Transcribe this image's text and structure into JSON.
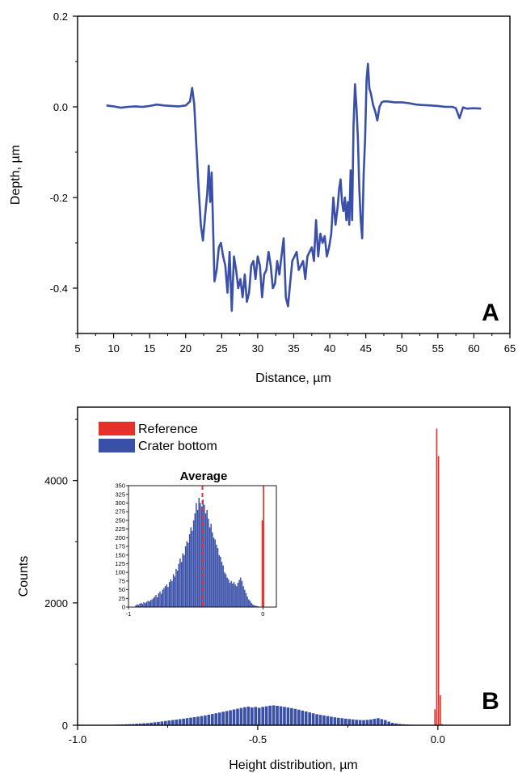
{
  "colors": {
    "line": "#3a4fa8",
    "crater": "#3a4fa8",
    "reference": "#e8302a",
    "average_marker": "#e8302a",
    "axis": "#000000"
  },
  "chart_data": [
    {
      "type": "line",
      "panel_label": "A",
      "xlabel": "Distance, µm",
      "ylabel": "Depth, µm",
      "xlim": [
        5,
        65
      ],
      "ylim": [
        -0.5,
        0.2
      ],
      "x_ticks": [
        5,
        10,
        15,
        20,
        25,
        30,
        35,
        40,
        45,
        50,
        55,
        60,
        65
      ],
      "y_ticks": [
        0.2,
        0.0,
        -0.2,
        -0.4
      ],
      "y_tick_labels": [
        "0.2",
        "0.0",
        "-0.2",
        "-0.4"
      ],
      "grid": false,
      "series": [
        {
          "x": [
            9,
            10,
            11,
            12,
            13,
            14,
            15,
            16,
            17,
            18,
            19,
            20,
            20.6,
            20.9,
            21.2,
            21.5,
            21.8,
            22.1,
            22.4,
            22.7,
            23.0,
            23.2,
            23.4,
            23.6,
            23.8,
            24.0,
            24.3,
            24.6,
            24.9,
            25.2,
            25.5,
            25.8,
            26.1,
            26.4,
            26.7,
            27.0,
            27.3,
            27.6,
            27.9,
            28.2,
            28.5,
            28.8,
            29.1,
            29.4,
            29.7,
            30.0,
            30.3,
            30.6,
            30.9,
            31.2,
            31.5,
            31.8,
            32.1,
            32.4,
            32.7,
            33.0,
            33.3,
            33.6,
            33.9,
            34.2,
            34.5,
            34.8,
            35.1,
            35.4,
            35.7,
            36.0,
            36.3,
            36.6,
            36.9,
            37.2,
            37.5,
            37.8,
            38.1,
            38.4,
            38.7,
            39.0,
            39.3,
            39.6,
            39.9,
            40.2,
            40.5,
            40.8,
            41.1,
            41.3,
            41.5,
            41.7,
            41.9,
            42.1,
            42.3,
            42.5,
            42.7,
            42.9,
            43.1,
            43.3,
            43.5,
            43.7,
            43.9,
            44.1,
            44.3,
            44.5,
            44.7,
            44.9,
            45.1,
            45.3,
            45.5,
            45.7,
            46.0,
            46.3,
            46.6,
            46.9,
            47.2,
            47.5,
            48,
            49,
            50,
            51,
            52,
            53,
            54,
            55,
            56,
            57,
            57.5,
            58,
            58.5,
            59,
            60,
            61
          ],
          "y": [
            0.003,
            0.001,
            -0.002,
            0.0,
            0.001,
            0.0,
            0.002,
            0.005,
            0.003,
            0.002,
            0.001,
            0.003,
            0.012,
            0.042,
            0.005,
            -0.09,
            -0.18,
            -0.26,
            -0.295,
            -0.24,
            -0.19,
            -0.13,
            -0.21,
            -0.145,
            -0.26,
            -0.385,
            -0.36,
            -0.31,
            -0.3,
            -0.33,
            -0.35,
            -0.41,
            -0.32,
            -0.45,
            -0.33,
            -0.36,
            -0.4,
            -0.38,
            -0.42,
            -0.37,
            -0.43,
            -0.41,
            -0.35,
            -0.34,
            -0.38,
            -0.33,
            -0.35,
            -0.42,
            -0.37,
            -0.36,
            -0.32,
            -0.35,
            -0.4,
            -0.39,
            -0.34,
            -0.37,
            -0.33,
            -0.29,
            -0.42,
            -0.44,
            -0.39,
            -0.34,
            -0.33,
            -0.32,
            -0.36,
            -0.35,
            -0.34,
            -0.38,
            -0.33,
            -0.32,
            -0.31,
            -0.34,
            -0.25,
            -0.33,
            -0.28,
            -0.3,
            -0.285,
            -0.33,
            -0.31,
            -0.28,
            -0.2,
            -0.26,
            -0.22,
            -0.18,
            -0.16,
            -0.21,
            -0.23,
            -0.2,
            -0.25,
            -0.21,
            -0.26,
            -0.14,
            -0.25,
            -0.04,
            0.05,
            0.0,
            -0.07,
            -0.18,
            -0.25,
            -0.29,
            -0.15,
            -0.07,
            0.06,
            0.095,
            0.04,
            0.03,
            0.005,
            -0.01,
            -0.03,
            0.0,
            0.01,
            0.012,
            0.012,
            0.01,
            0.01,
            0.008,
            0.005,
            0.004,
            0.003,
            0.002,
            0.0,
            0.0,
            -0.003,
            -0.025,
            -0.001,
            -0.004,
            -0.003,
            -0.004
          ]
        }
      ]
    },
    {
      "type": "bar",
      "panel_label": "B",
      "xlabel": "Height distribution, µm",
      "ylabel": "Counts",
      "xlim": [
        -1.0,
        0.2
      ],
      "ylim": [
        0,
        5200
      ],
      "x_ticks": [
        -1.0,
        -0.5,
        0.0
      ],
      "x_tick_labels": [
        "-1.0",
        "-0.5",
        "0.0"
      ],
      "y_ticks": [
        0,
        2000,
        4000
      ],
      "y_tick_labels": [
        "0",
        "2000",
        "4000"
      ],
      "bin_width": 0.01,
      "legend": {
        "position": "top-left",
        "entries": [
          "Reference",
          "Crater bottom"
        ]
      },
      "series": [
        {
          "name": "Crater bottom",
          "x": [
            -0.92,
            -0.91,
            -0.9,
            -0.89,
            -0.88,
            -0.87,
            -0.86,
            -0.85,
            -0.84,
            -0.83,
            -0.82,
            -0.81,
            -0.8,
            -0.79,
            -0.78,
            -0.77,
            -0.76,
            -0.75,
            -0.74,
            -0.73,
            -0.72,
            -0.71,
            -0.7,
            -0.69,
            -0.68,
            -0.67,
            -0.66,
            -0.65,
            -0.64,
            -0.63,
            -0.62,
            -0.61,
            -0.6,
            -0.59,
            -0.58,
            -0.57,
            -0.56,
            -0.55,
            -0.54,
            -0.53,
            -0.52,
            -0.51,
            -0.5,
            -0.49,
            -0.48,
            -0.47,
            -0.46,
            -0.45,
            -0.44,
            -0.43,
            -0.42,
            -0.41,
            -0.4,
            -0.39,
            -0.38,
            -0.37,
            -0.36,
            -0.35,
            -0.34,
            -0.33,
            -0.32,
            -0.31,
            -0.3,
            -0.29,
            -0.28,
            -0.27,
            -0.26,
            -0.25,
            -0.24,
            -0.23,
            -0.22,
            -0.21,
            -0.2,
            -0.19,
            -0.18,
            -0.17,
            -0.16,
            -0.15,
            -0.14,
            -0.13,
            -0.12,
            -0.11,
            -0.1,
            -0.09,
            -0.08,
            -0.07,
            -0.06,
            -0.05,
            -0.04,
            -0.03,
            -0.02
          ],
          "values": [
            5,
            6,
            8,
            10,
            12,
            15,
            18,
            20,
            24,
            28,
            32,
            36,
            42,
            48,
            55,
            62,
            70,
            78,
            85,
            92,
            100,
            108,
            116,
            124,
            132,
            140,
            150,
            160,
            172,
            184,
            196,
            208,
            220,
            232,
            245,
            258,
            270,
            282,
            295,
            305,
            290,
            300,
            285,
            300,
            310,
            320,
            325,
            318,
            310,
            300,
            290,
            280,
            268,
            255,
            240,
            225,
            210,
            195,
            180,
            170,
            160,
            150,
            140,
            130,
            122,
            115,
            108,
            102,
            96,
            90,
            86,
            84,
            88,
            95,
            105,
            115,
            100,
            85,
            60,
            40,
            30,
            22,
            16,
            12,
            8,
            6,
            4,
            3,
            2,
            2,
            1
          ]
        },
        {
          "name": "Reference",
          "x": [
            -0.01,
            -0.005,
            0.0,
            0.005,
            0.01
          ],
          "values": [
            260,
            4850,
            4400,
            490,
            20
          ]
        }
      ],
      "inset": {
        "title": "Average",
        "xlim": [
          -1,
          0.1
        ],
        "ylim": [
          0,
          350
        ],
        "x_ticks": [
          -1,
          0
        ],
        "x_tick_labels": [
          "-1",
          "0"
        ],
        "y_ticks": [
          0,
          25,
          50,
          75,
          100,
          125,
          150,
          175,
          200,
          225,
          250,
          275,
          300,
          325,
          350
        ],
        "y_tick_labels": [
          "0",
          "25",
          "50",
          "75",
          "100",
          "125",
          "150",
          "175",
          "200",
          "225",
          "250",
          "275",
          "300",
          "325",
          "350"
        ],
        "average_x": -0.45,
        "bin_width": 0.01,
        "series": [
          {
            "name": "Crater bottom",
            "x": [
              -0.95,
              -0.94,
              -0.93,
              -0.92,
              -0.91,
              -0.9,
              -0.89,
              -0.88,
              -0.87,
              -0.86,
              -0.85,
              -0.84,
              -0.83,
              -0.82,
              -0.81,
              -0.8,
              -0.79,
              -0.78,
              -0.77,
              -0.76,
              -0.75,
              -0.74,
              -0.73,
              -0.72,
              -0.71,
              -0.7,
              -0.69,
              -0.68,
              -0.67,
              -0.66,
              -0.65,
              -0.64,
              -0.63,
              -0.62,
              -0.61,
              -0.6,
              -0.59,
              -0.58,
              -0.57,
              -0.56,
              -0.55,
              -0.54,
              -0.53,
              -0.52,
              -0.51,
              -0.5,
              -0.49,
              -0.48,
              -0.47,
              -0.46,
              -0.45,
              -0.44,
              -0.43,
              -0.42,
              -0.41,
              -0.4,
              -0.39,
              -0.38,
              -0.37,
              -0.36,
              -0.35,
              -0.34,
              -0.33,
              -0.32,
              -0.31,
              -0.3,
              -0.29,
              -0.28,
              -0.27,
              -0.26,
              -0.25,
              -0.24,
              -0.23,
              -0.22,
              -0.21,
              -0.2,
              -0.19,
              -0.18,
              -0.17,
              -0.16,
              -0.15,
              -0.14,
              -0.13,
              -0.12,
              -0.11,
              -0.1,
              -0.09,
              -0.08,
              -0.07,
              -0.06,
              -0.05,
              -0.04,
              -0.03
            ],
            "values": [
              5,
              8,
              6,
              10,
              12,
              9,
              14,
              11,
              15,
              18,
              16,
              20,
              22,
              25,
              30,
              35,
              28,
              40,
              45,
              38,
              50,
              55,
              60,
              65,
              58,
              72,
              80,
              75,
              95,
              88,
              110,
              105,
              125,
              140,
              130,
              155,
              150,
              175,
              190,
              185,
              210,
              230,
              220,
              250,
              270,
              300,
              280,
              315,
              300,
              290,
              310,
              295,
              270,
              280,
              255,
              230,
              240,
              215,
              200,
              195,
              180,
              170,
              150,
              145,
              130,
              120,
              100,
              95,
              85,
              80,
              70,
              75,
              68,
              72,
              65,
              60,
              70,
              78,
              85,
              75,
              60,
              50,
              40,
              30,
              22,
              18,
              12,
              8,
              5,
              4,
              3,
              2,
              1
            ]
          },
          {
            "name": "Reference",
            "x": [
              -0.01,
              0.0
            ],
            "values": [
              250,
              350
            ]
          }
        ]
      }
    }
  ]
}
